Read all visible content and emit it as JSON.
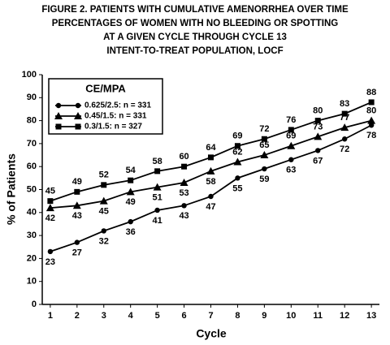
{
  "chart_data": {
    "type": "line",
    "title": [
      "FIGURE 2. PATIENTS WITH CUMULATIVE AMENORRHEA OVER TIME",
      "PERCENTAGES OF WOMEN WITH NO BLEEDING OR SPOTTING",
      "AT A GIVEN CYCLE THROUGH CYCLE 13",
      "INTENT-TO-TREAT POPULATION, LOCF"
    ],
    "x_label": "Cycle",
    "y_label": "% of Patients",
    "legend_title": "CE/MPA",
    "x": [
      1,
      2,
      3,
      4,
      5,
      6,
      7,
      8,
      9,
      10,
      11,
      12,
      13
    ],
    "xlim": [
      0.7,
      13.3
    ],
    "xticks": [
      1,
      2,
      3,
      4,
      5,
      6,
      7,
      8,
      9,
      10,
      11,
      12,
      13
    ],
    "ylim": [
      0,
      100
    ],
    "yticks": [
      0,
      10,
      20,
      30,
      40,
      50,
      60,
      70,
      80,
      90,
      100
    ],
    "series": [
      {
        "name": "0.625/2.5: n = 331",
        "color": "#000000",
        "marker": "circle",
        "values": [
          23,
          27,
          32,
          36,
          41,
          43,
          47,
          55,
          59,
          63,
          67,
          72,
          78
        ]
      },
      {
        "name": "0.45/1.5: n = 331",
        "color": "#000000",
        "marker": "triangle",
        "values": [
          42,
          43,
          45,
          49,
          51,
          53,
          58,
          62,
          65,
          69,
          73,
          77,
          80
        ]
      },
      {
        "name": "0.3/1.5: n = 327",
        "color": "#000000",
        "marker": "square",
        "values": [
          45,
          49,
          52,
          54,
          58,
          60,
          64,
          69,
          72,
          76,
          80,
          83,
          88
        ]
      }
    ]
  }
}
